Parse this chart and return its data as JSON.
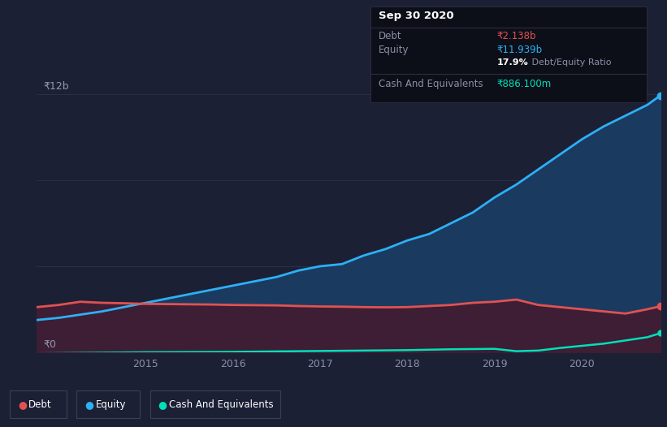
{
  "background_color": "#1c2035",
  "plot_bg_color": "#1c2035",
  "grid_color": "#2a2f4a",
  "title_text": "Sep 30 2020",
  "tooltip_debt_label": "Debt",
  "tooltip_equity_label": "Equity",
  "tooltip_cash_label": "Cash And Equivalents",
  "tooltip_debt": "₹2.138b",
  "tooltip_equity": "₹11.939b",
  "tooltip_ratio": "17.9%",
  "tooltip_ratio_suffix": " Debt/Equity Ratio",
  "tooltip_cash": "₹886.100m",
  "ylabel_top": "₹12b",
  "ylabel_bottom": "₹0",
  "debt_color": "#e05252",
  "equity_color": "#2db0f5",
  "cash_color": "#00e0b8",
  "equity_fill_color": "#1b3a60",
  "debt_fill_color": "#3d1e35",
  "years": [
    2013.75,
    2014.0,
    2014.25,
    2014.5,
    2014.75,
    2015.0,
    2015.25,
    2015.5,
    2015.75,
    2016.0,
    2016.25,
    2016.5,
    2016.75,
    2017.0,
    2017.25,
    2017.5,
    2017.75,
    2018.0,
    2018.25,
    2018.5,
    2018.75,
    2019.0,
    2019.25,
    2019.5,
    2019.75,
    2020.0,
    2020.25,
    2020.5,
    2020.75,
    2020.9
  ],
  "debt_values": [
    2100,
    2200,
    2350,
    2300,
    2280,
    2250,
    2240,
    2230,
    2220,
    2200,
    2190,
    2180,
    2150,
    2130,
    2120,
    2100,
    2090,
    2100,
    2150,
    2200,
    2300,
    2350,
    2450,
    2200,
    2100,
    2000,
    1900,
    1800,
    2000,
    2138
  ],
  "equity_values": [
    1500,
    1600,
    1750,
    1900,
    2100,
    2300,
    2500,
    2700,
    2900,
    3100,
    3300,
    3500,
    3800,
    4000,
    4100,
    4500,
    4800,
    5200,
    5500,
    6000,
    6500,
    7200,
    7800,
    8500,
    9200,
    9900,
    10500,
    11000,
    11500,
    11939
  ],
  "cash_values": [
    -50,
    -40,
    -30,
    -20,
    -10,
    0,
    5,
    10,
    15,
    20,
    30,
    40,
    50,
    60,
    70,
    80,
    90,
    100,
    120,
    140,
    150,
    160,
    50,
    80,
    200,
    300,
    400,
    550,
    700,
    886
  ],
  "legend_labels": [
    "Debt",
    "Equity",
    "Cash And Equivalents"
  ],
  "xtick_labels": [
    "2015",
    "2016",
    "2017",
    "2018",
    "2019",
    "2020"
  ],
  "xtick_positions": [
    2015,
    2016,
    2017,
    2018,
    2019,
    2020
  ],
  "ylim_max": 13500,
  "scale": 1000000000
}
